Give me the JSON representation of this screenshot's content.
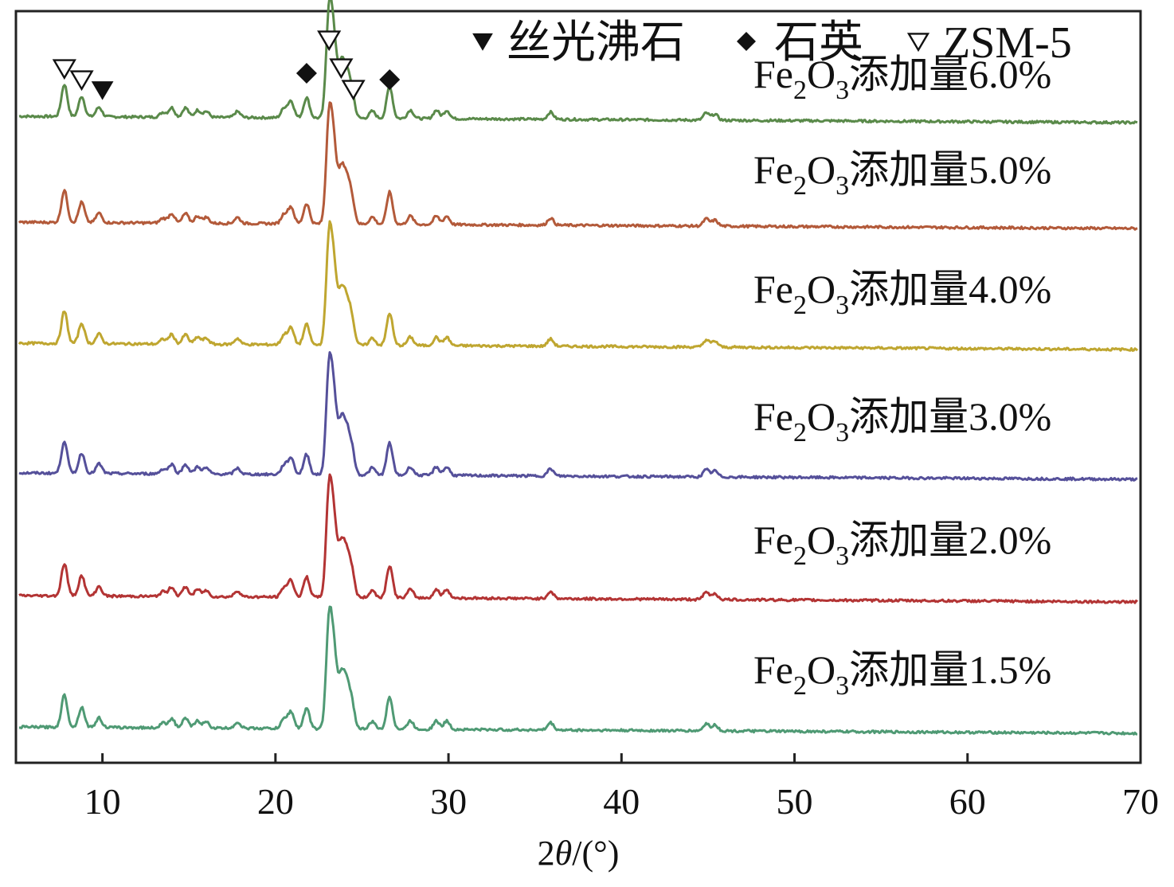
{
  "chart_data": {
    "type": "line",
    "title": "",
    "xlabel_prefix": "2",
    "xlabel_symbol": "θ",
    "xlabel_suffix": "/(°)",
    "ylabel": "",
    "xlim": [
      5,
      70
    ],
    "xticks": [
      "10",
      "20",
      "30",
      "40",
      "50",
      "60",
      "70"
    ],
    "grid": false,
    "legend": {
      "position": "top-right",
      "entries": [
        {
          "marker": "filled-triangle-down",
          "label": "丝光沸石"
        },
        {
          "marker": "filled-diamond",
          "label": "石英"
        },
        {
          "marker": "open-triangle-down",
          "label": "ZSM-5"
        }
      ]
    },
    "series": [
      {
        "name": "6.0%",
        "label_text": "添加量6.0%",
        "color": "#5a8a4a"
      },
      {
        "name": "5.0%",
        "label_text": "添加量5.0%",
        "color": "#b35a3a"
      },
      {
        "name": "4.0%",
        "label_text": "添加量4.0%",
        "color": "#bfa630"
      },
      {
        "name": "3.0%",
        "label_text": "添加量3.0%",
        "color": "#55509a"
      },
      {
        "name": "2.0%",
        "label_text": "添加量2.0%",
        "color": "#b33434"
      },
      {
        "name": "1.5%",
        "label_text": "添加量1.5%",
        "color": "#4f9a74"
      }
    ],
    "series_label_formula": {
      "fe": "Fe",
      "sub1": "2",
      "o": "O",
      "sub2": "3"
    },
    "peaks_2theta": [
      [
        7.8,
        0.27
      ],
      [
        8.8,
        0.17
      ],
      [
        9.8,
        0.08
      ],
      [
        13.5,
        0.04
      ],
      [
        14.0,
        0.08
      ],
      [
        14.8,
        0.08
      ],
      [
        15.5,
        0.06
      ],
      [
        16.0,
        0.05
      ],
      [
        17.8,
        0.05
      ],
      [
        20.5,
        0.08
      ],
      [
        20.9,
        0.14
      ],
      [
        21.8,
        0.17
      ],
      [
        23.1,
        0.88
      ],
      [
        23.4,
        0.55
      ],
      [
        23.8,
        0.4
      ],
      [
        24.1,
        0.32
      ],
      [
        24.4,
        0.22
      ],
      [
        25.6,
        0.06
      ],
      [
        26.6,
        0.27
      ],
      [
        27.8,
        0.07
      ],
      [
        29.3,
        0.07
      ],
      [
        29.9,
        0.07
      ],
      [
        35.9,
        0.06
      ],
      [
        44.9,
        0.06
      ],
      [
        45.4,
        0.05
      ]
    ],
    "annotations": [
      {
        "marker": "open-triangle-down",
        "x": 7.8
      },
      {
        "marker": "open-triangle-down",
        "x": 8.8
      },
      {
        "marker": "filled-triangle-down",
        "x": 10.0
      },
      {
        "marker": "filled-diamond",
        "x": 21.8
      },
      {
        "marker": "open-triangle-down",
        "x": 23.1
      },
      {
        "marker": "open-triangle-down",
        "x": 23.8
      },
      {
        "marker": "open-triangle-down",
        "x": 24.5
      },
      {
        "marker": "filled-diamond",
        "x": 26.6
      }
    ]
  }
}
